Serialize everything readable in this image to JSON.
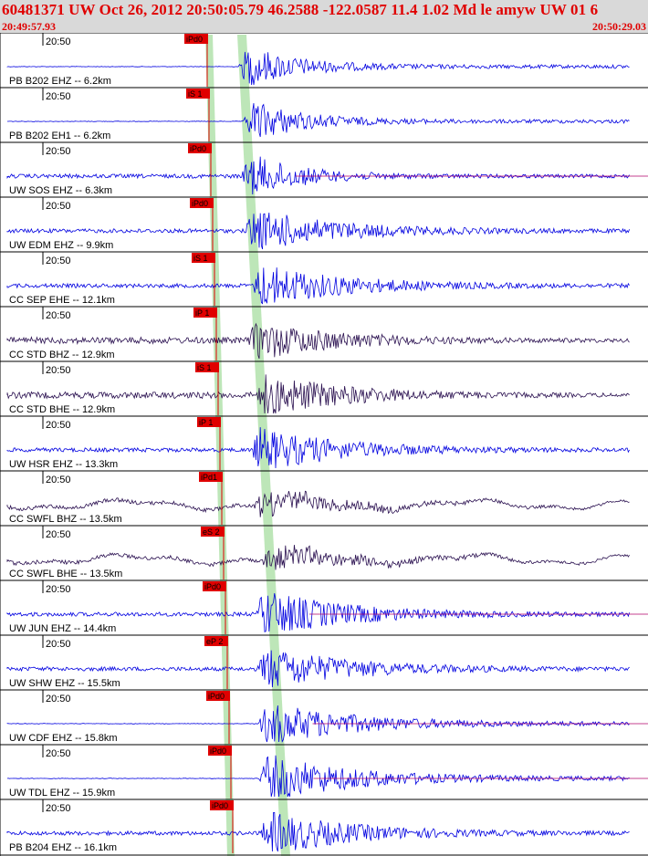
{
  "header": {
    "title": "60481371 UW Oct 26, 2012 20:50:05.79   46.2588 -122.0587 11.4 1.02 Md le amyw UW 01   6",
    "start_time": "20:49:57.93",
    "end_time": "20:50:29.03"
  },
  "tick_label": "20:50",
  "colors": {
    "header_bg": "#d9d9d9",
    "header_text": "#e00000",
    "trace_blue": "#0000e0",
    "trace_dark": "#2a1050",
    "pick_red": "#e00000",
    "band_green": "#b6e3b0",
    "tail_red": "#b0006a"
  },
  "traces": [
    {
      "label": "PB B202 EHZ -- 6.2km",
      "pick": "iPd0",
      "color": "blue",
      "onset": 0.335,
      "amp": 1.0,
      "line_from": 0.0
    },
    {
      "label": "PB B202 EH1 -- 6.2km",
      "pick": "iS 1",
      "color": "blue",
      "onset": 0.37,
      "amp": 1.0,
      "line_from": 0.0
    },
    {
      "label": "UW SOS EHZ -- 6.3km",
      "pick": "iPd0",
      "color": "blue",
      "onset": 0.33,
      "amp": 1.1,
      "line_from": 0.0,
      "tail": true
    },
    {
      "label": "UW EDM EHZ -- 9.9km",
      "pick": "iPd0",
      "color": "blue",
      "onset": 0.35,
      "amp": 1.0,
      "line_from": 0.0
    },
    {
      "label": "CC SEP EHE -- 12.1km",
      "pick": "iS 1",
      "color": "blue",
      "onset": 0.42,
      "amp": 1.0,
      "line_from": 0.0
    },
    {
      "label": "CC STD BHZ -- 12.9km",
      "pick": "iP 1",
      "color": "dark",
      "onset": 0.35,
      "amp": 0.9,
      "line_from": 0.0
    },
    {
      "label": "CC STD BHE -- 12.9km",
      "pick": "iS 1",
      "color": "dark",
      "onset": 0.43,
      "amp": 1.0,
      "line_from": 0.0
    },
    {
      "label": "UW HSR EHZ -- 13.3km",
      "pick": "iP 1",
      "color": "blue",
      "onset": 0.36,
      "amp": 1.0,
      "line_from": 0.0
    },
    {
      "label": "CC SWFL BHZ -- 13.5km",
      "pick": "iPd1",
      "color": "dark",
      "onset": 0.365,
      "amp": 1.0,
      "line_from": 0.0
    },
    {
      "label": "CC SWFL BHE -- 13.5km",
      "pick": "eS 2",
      "color": "dark",
      "onset": 0.44,
      "amp": 1.0,
      "line_from": 0.0
    },
    {
      "label": "UW JUN EHZ -- 14.4km",
      "pick": "iPd0",
      "color": "blue",
      "onset": 0.36,
      "amp": 1.1,
      "line_from": 0.0,
      "tail": true
    },
    {
      "label": "UW SHW EHZ -- 15.5km",
      "pick": "eP 2",
      "color": "blue",
      "onset": 0.37,
      "amp": 1.0,
      "line_from": 0.0
    },
    {
      "label": "UW CDF EHZ -- 15.8km",
      "pick": "iPd0",
      "color": "blue",
      "onset": 0.365,
      "amp": 1.0,
      "line_from": 0.0,
      "tail": true
    },
    {
      "label": "UW TDL EHZ -- 15.9km",
      "pick": "iPd0",
      "color": "blue",
      "onset": 0.36,
      "amp": 1.1,
      "line_from": 0.0,
      "tail": true
    },
    {
      "label": "PB B204 EHZ -- 16.1km",
      "pick": "iPd0",
      "color": "blue",
      "onset": 0.355,
      "amp": 1.0,
      "line_from": 0.0
    }
  ]
}
